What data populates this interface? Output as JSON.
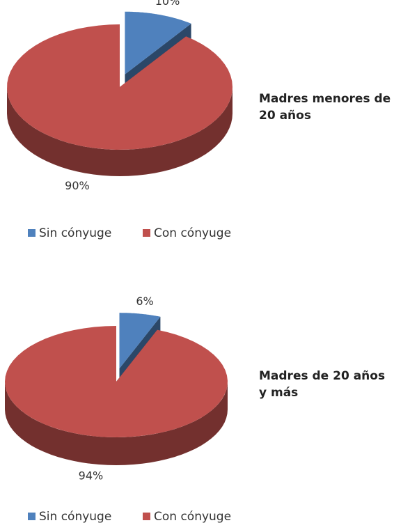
{
  "chart_data": [
    {
      "type": "pie",
      "title": "Madres menores de 20 años",
      "categories": [
        "Sin cónyuge",
        "Con cónyuge"
      ],
      "values": [
        10,
        90
      ],
      "value_labels": [
        "10%",
        "90%"
      ],
      "colors": [
        "#4f81bd",
        "#c0504d"
      ]
    },
    {
      "type": "pie",
      "title": "Madres de 20 años y más",
      "categories": [
        "Sin cónyuge",
        "Con cónyuge"
      ],
      "values": [
        6,
        94
      ],
      "value_labels": [
        "6%",
        "94%"
      ],
      "colors": [
        "#4f81bd",
        "#c0504d"
      ]
    }
  ]
}
